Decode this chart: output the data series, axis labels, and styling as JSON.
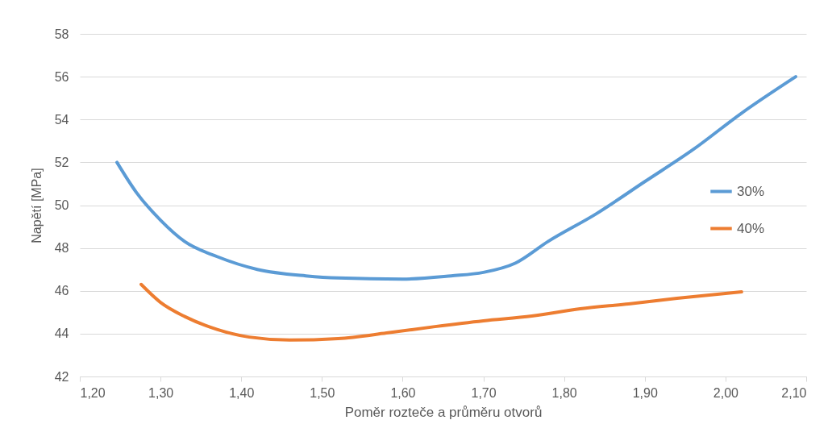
{
  "chart_data": {
    "type": "line",
    "xlabel": "Poměr rozteče a průměru otvorů",
    "ylabel": "Napětí [MPa]",
    "xlim": [
      1.2,
      2.1
    ],
    "xticks": [
      {
        "value": 1.2,
        "label": "1,20"
      },
      {
        "value": 1.3,
        "label": "1,30"
      },
      {
        "value": 1.4,
        "label": "1,40"
      },
      {
        "value": 1.5,
        "label": "1,50"
      },
      {
        "value": 1.6,
        "label": "1,60"
      },
      {
        "value": 1.7,
        "label": "1,70"
      },
      {
        "value": 1.8,
        "label": "1,80"
      },
      {
        "value": 1.9,
        "label": "1,90"
      },
      {
        "value": 2.0,
        "label": "2,00"
      },
      {
        "value": 2.1,
        "label": "2,10"
      }
    ],
    "ylim": [
      42,
      58
    ],
    "yticks": [
      42,
      44,
      46,
      48,
      50,
      52,
      54,
      56,
      58
    ],
    "grid": "y",
    "legend": "right",
    "marker": "none",
    "line_style": "solid",
    "series": [
      {
        "name": "30%",
        "color": "#5b9bd5",
        "x": [
          1.246,
          1.27,
          1.3,
          1.33,
          1.37,
          1.42,
          1.48,
          1.52,
          1.6,
          1.66,
          1.7,
          1.74,
          1.78,
          1.84,
          1.9,
          1.96,
          2.02,
          2.087
        ],
        "values": [
          52.0,
          50.6,
          49.3,
          48.3,
          47.6,
          47.0,
          46.7,
          46.6,
          46.55,
          46.7,
          46.86,
          47.3,
          48.3,
          49.6,
          51.1,
          52.6,
          54.3,
          56.0
        ]
      },
      {
        "name": "40%",
        "color": "#ed7d31",
        "x": [
          1.276,
          1.3,
          1.33,
          1.37,
          1.41,
          1.46,
          1.52,
          1.58,
          1.64,
          1.7,
          1.76,
          1.82,
          1.88,
          1.94,
          2.02
        ],
        "values": [
          46.3,
          45.46,
          44.8,
          44.2,
          43.84,
          43.7,
          43.77,
          44.03,
          44.33,
          44.6,
          44.82,
          45.16,
          45.39,
          45.65,
          45.95
        ]
      }
    ]
  }
}
